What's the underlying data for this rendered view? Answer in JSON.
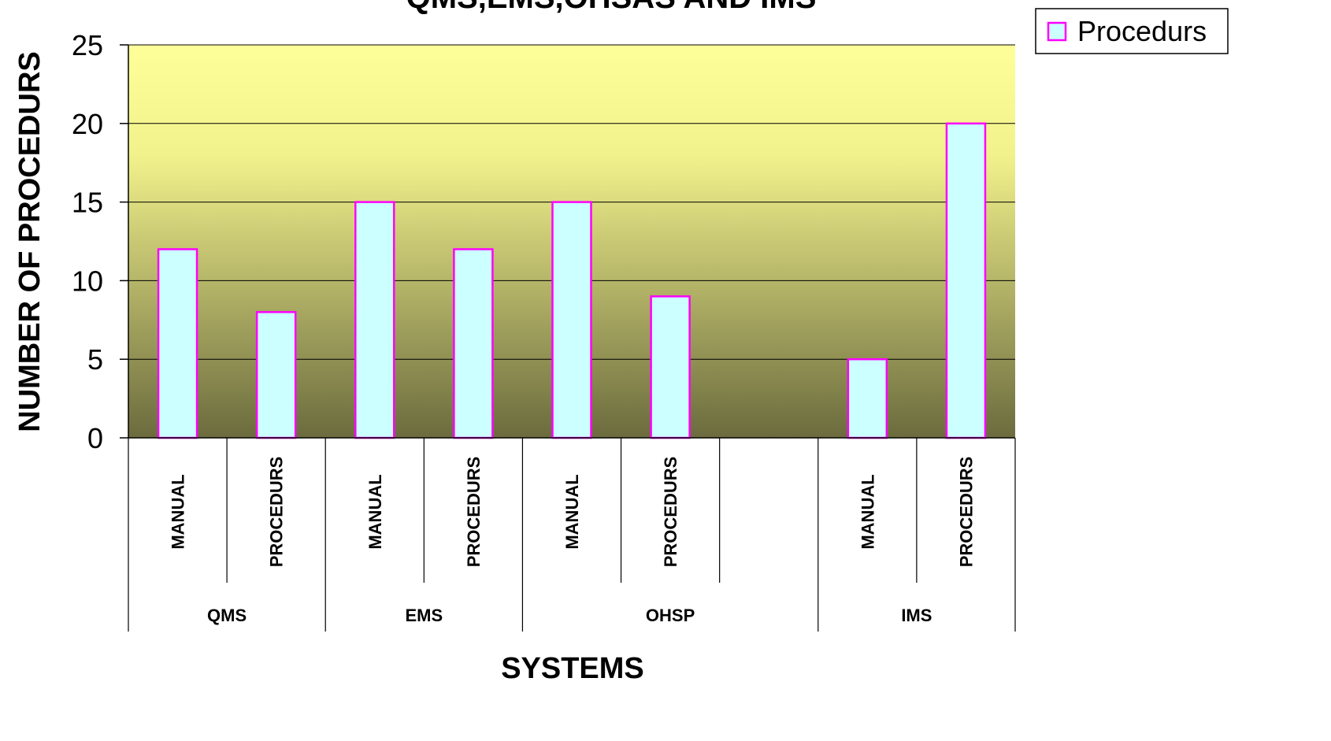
{
  "chart_data": {
    "type": "bar",
    "title": "QMS,EMS,OHSAS AND IMS",
    "xlabel": "SYSTEMS",
    "ylabel": "NUMBER OF PROCEDURS",
    "ylim": [
      0,
      25
    ],
    "yticks": [
      "0",
      "5",
      "10",
      "15",
      "20",
      "25"
    ],
    "grid": true,
    "legend_position": "top-right",
    "categories": [
      {
        "group": "QMS",
        "label": "MANUAL"
      },
      {
        "group": "QMS",
        "label": "PROCEDURS"
      },
      {
        "group": "EMS",
        "label": "MANUAL"
      },
      {
        "group": "EMS",
        "label": "PROCEDURS"
      },
      {
        "group": "OHSP",
        "label": "MANUAL"
      },
      {
        "group": "OHSP",
        "label": "PROCEDURS"
      },
      {
        "group": "OHSP",
        "label": ""
      },
      {
        "group": "IMS",
        "label": "MANUAL"
      },
      {
        "group": "IMS",
        "label": "PROCEDURS"
      }
    ],
    "groups": [
      "QMS",
      "EMS",
      "OHSP",
      "IMS"
    ],
    "series": [
      {
        "name": "Procedurs",
        "values": [
          12,
          8,
          15,
          12,
          15,
          9,
          null,
          5,
          20
        ]
      }
    ],
    "colors": {
      "bar_fill": "#CCFFFF",
      "bar_stroke": "#FF00FF",
      "plot_bg_top": "#FFFF99",
      "plot_bg_bottom": "#6B6B3E",
      "gridline": "#000000"
    }
  }
}
